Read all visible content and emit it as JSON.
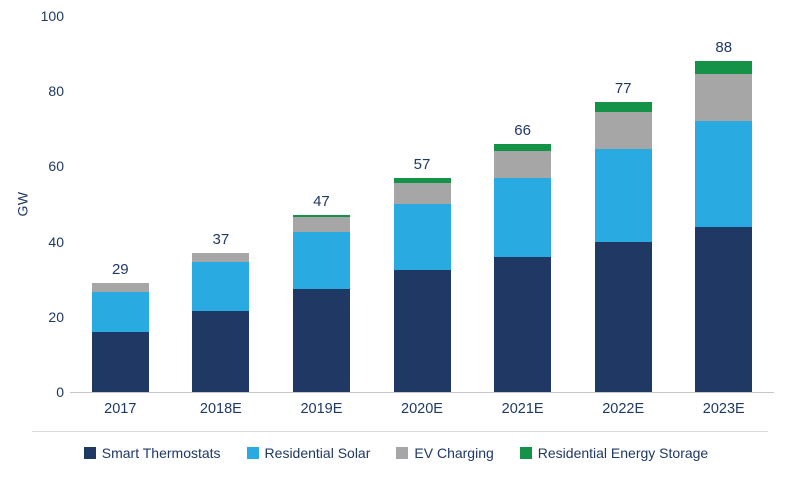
{
  "chart_data": {
    "type": "bar",
    "stacked": true,
    "ylabel": "GW",
    "ylim": [
      0,
      100
    ],
    "yticks": [
      0,
      20,
      40,
      60,
      80,
      100
    ],
    "grid": false,
    "legend_position": "bottom",
    "categories": [
      "2017",
      "2018E",
      "2019E",
      "2020E",
      "2021E",
      "2022E",
      "2023E"
    ],
    "totals": [
      29,
      37,
      47,
      57,
      66,
      77,
      88
    ],
    "series": [
      {
        "name": "Smart Thermostats",
        "color": "#1f3864",
        "values": [
          16,
          21.5,
          27.5,
          32.5,
          36,
          40,
          44
        ]
      },
      {
        "name": "Residential Solar",
        "color": "#29abe2",
        "values": [
          10.5,
          13,
          15,
          17.5,
          21,
          24.5,
          28
        ]
      },
      {
        "name": "EV Charging",
        "color": "#a6a6a6",
        "values": [
          2.5,
          2.5,
          4,
          5.5,
          7,
          10,
          12.5
        ]
      },
      {
        "name": "Residential Energy Storage",
        "color": "#149247",
        "values": [
          0,
          0,
          0.5,
          1.5,
          2,
          2.5,
          3.5
        ]
      }
    ]
  },
  "labels": {
    "y_axis_title": "GW"
  }
}
